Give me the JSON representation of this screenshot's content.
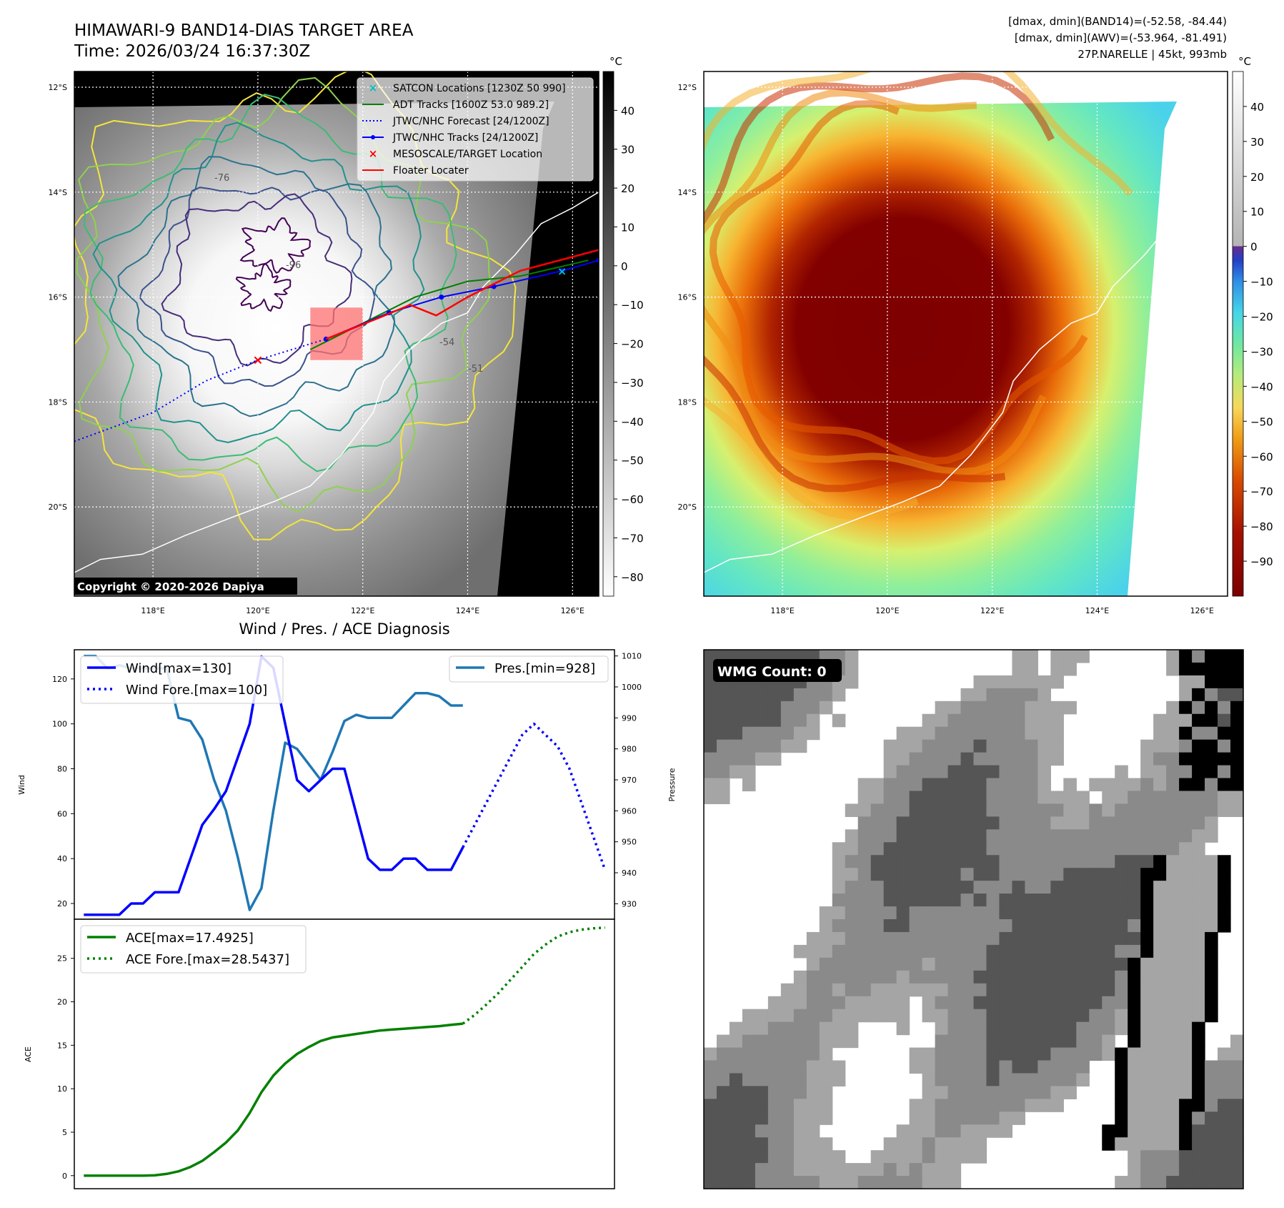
{
  "header": {
    "title": "HIMAWARI-9 BAND14-DIAS TARGET AREA",
    "time": "Time: 2026/03/24 16:37:30Z",
    "stats": [
      "[dmax, dmin](BAND14)=(-52.58, -84.44)",
      "[dmax, dmin](AWV)=(-53.964, -81.491)",
      "27P.NARELLE | 45kt, 993mb"
    ]
  },
  "maps": {
    "lat_labels": [
      "12°S",
      "14°S",
      "16°S",
      "18°S",
      "20°S"
    ],
    "lat_values": [
      -12,
      -14,
      -16,
      -18,
      -20
    ],
    "lon_labels": [
      "118°E",
      "120°E",
      "122°E",
      "124°E",
      "126°E"
    ],
    "lon_values": [
      118,
      120,
      122,
      124,
      126
    ],
    "lon_range": [
      116.5,
      126.5
    ],
    "lat_range": [
      -21.7,
      -11.7
    ],
    "copyright": "Copyright © 2020-2026 Dapiya",
    "unit": "°C",
    "left_colorbar_ticks": [
      "40",
      "30",
      "20",
      "10",
      "0",
      "−10",
      "−20",
      "−30",
      "−40",
      "−50",
      "−60",
      "−70",
      "−80"
    ],
    "left_colorbar_values": [
      40,
      30,
      20,
      10,
      0,
      -10,
      -20,
      -30,
      -40,
      -50,
      -60,
      -70,
      -80
    ],
    "left_colorbar_range": [
      -85,
      50
    ],
    "right_colorbar_ticks": [
      "40",
      "30",
      "20",
      "10",
      "0",
      "−10",
      "−20",
      "−30",
      "−40",
      "−50",
      "−60",
      "−70",
      "−80",
      "−90"
    ],
    "right_colorbar_values": [
      40,
      30,
      20,
      10,
      0,
      -10,
      -20,
      -30,
      -40,
      -50,
      -60,
      -70,
      -80,
      -90
    ],
    "right_colorbar_range": [
      -100,
      50
    ],
    "legend": [
      {
        "label": "SATCON Locations [1230Z 50 990]",
        "color": "#00c0c0",
        "style": "x"
      },
      {
        "label": "ADT Tracks [1600Z 53.0 989.2]",
        "color": "#008000",
        "style": "line"
      },
      {
        "label": "JTWC/NHC Forecast [24/1200Z]",
        "color": "#0000ff",
        "style": "dotted"
      },
      {
        "label": "JTWC/NHC Tracks [24/1200Z]",
        "color": "#0000ff",
        "style": "line-dot"
      },
      {
        "label": "MESOSCALE/TARGET Location",
        "color": "#ff0000",
        "style": "x"
      },
      {
        "label": "Floater Locater",
        "color": "#ff0000",
        "style": "line"
      }
    ],
    "contour_labels": [
      "-76",
      "-96",
      "-54",
      "-51"
    ],
    "tracks": {
      "jtwc_forecast": [
        [
          116.5,
          -18.75
        ],
        [
          118.0,
          -18.2
        ],
        [
          119.0,
          -17.6
        ],
        [
          120.0,
          -17.2
        ],
        [
          121.3,
          -16.8
        ]
      ],
      "jtwc_track": [
        [
          121.3,
          -16.8
        ],
        [
          122.5,
          -16.3
        ],
        [
          123.5,
          -16.0
        ],
        [
          124.5,
          -15.8
        ],
        [
          125.8,
          -15.5
        ],
        [
          126.5,
          -15.3
        ]
      ],
      "adt_track": [
        [
          121.0,
          -17.0
        ],
        [
          122.0,
          -16.5
        ],
        [
          123.0,
          -16.0
        ],
        [
          124.0,
          -15.7
        ],
        [
          125.0,
          -15.6
        ],
        [
          126.3,
          -15.3
        ]
      ],
      "floater": [
        [
          121.3,
          -16.8
        ],
        [
          121.8,
          -16.6
        ],
        [
          122.3,
          -16.4
        ],
        [
          122.9,
          -16.15
        ],
        [
          123.4,
          -16.35
        ],
        [
          124.0,
          -16.0
        ],
        [
          125.0,
          -15.5
        ],
        [
          126.5,
          -15.1
        ]
      ],
      "target": [
        120.0,
        -17.2
      ],
      "satcon": [
        125.8,
        -15.5
      ]
    },
    "target_box": {
      "lon": [
        121.0,
        122.0
      ],
      "lat": [
        -17.2,
        -16.2
      ]
    }
  },
  "diag": {
    "title": "Wind / Pres. / ACE Diagnosis",
    "wind_ylabel": "Wind",
    "pres_ylabel": "Pressure",
    "ace_ylabel": "ACE",
    "legend_wind": "Wind[max=130]",
    "legend_wind_fore": "Wind Fore.[max=100]",
    "legend_pres": "Pres.[min=928]",
    "legend_ace": "ACE[max=17.4925]",
    "legend_ace_fore": "ACE Fore.[max=28.5437]",
    "wind_ticks": [
      "20",
      "40",
      "60",
      "80",
      "100",
      "120"
    ],
    "pres_ticks": [
      "930",
      "940",
      "950",
      "960",
      "970",
      "980",
      "990",
      "1000",
      "1010"
    ],
    "ace_ticks": [
      "0",
      "5",
      "10",
      "15",
      "20",
      "25"
    ]
  },
  "chart_data": [
    {
      "type": "line",
      "title": "Wind / Pres. / ACE Diagnosis",
      "ylabel": "Wind",
      "ylim": [
        13,
        133
      ],
      "xlim": [
        -0.8,
        44.8
      ],
      "series": [
        {
          "name": "Wind[max=130]",
          "x": [
            0,
            1,
            2,
            3,
            4,
            5,
            6,
            7,
            8,
            9,
            10,
            11,
            12,
            13,
            14,
            15,
            16,
            17,
            18,
            19,
            20,
            21,
            22,
            23,
            24,
            25,
            26,
            27,
            28,
            29,
            30,
            31,
            32
          ],
          "values": [
            15,
            15,
            15,
            15,
            20,
            20,
            25,
            25,
            25,
            40,
            55,
            62,
            70,
            85,
            100,
            130,
            125,
            100,
            75,
            70,
            75,
            80,
            80,
            60,
            40,
            35,
            35,
            40,
            40,
            35,
            35,
            35,
            45
          ]
        },
        {
          "name": "Wind Fore.[max=100]",
          "x": [
            32,
            33,
            34,
            35,
            36,
            37,
            38,
            39,
            40,
            41,
            42,
            43,
            44
          ],
          "values": [
            45,
            55,
            65,
            75,
            85,
            95,
            100,
            95,
            90,
            80,
            65,
            50,
            35
          ]
        }
      ]
    },
    {
      "type": "line",
      "ylabel": "Pressure",
      "ylim": [
        925,
        1012
      ],
      "series": [
        {
          "name": "Pres.[min=928]",
          "x": [
            0,
            1,
            2,
            3,
            4,
            5,
            6,
            7,
            8,
            9,
            10,
            11,
            12,
            13,
            14,
            15,
            16,
            17,
            18,
            19,
            20,
            21,
            22,
            23,
            24,
            25,
            26,
            27,
            28,
            29,
            30,
            31,
            32
          ],
          "values": [
            1010,
            1010,
            1006,
            1007,
            1006,
            1006,
            1006,
            1006,
            990,
            989,
            983,
            970,
            960,
            945,
            928,
            935,
            960,
            982,
            980,
            975,
            970,
            979,
            989,
            991,
            990,
            990,
            990,
            994,
            998,
            998,
            997,
            994,
            994
          ]
        }
      ]
    },
    {
      "type": "line",
      "ylabel": "ACE",
      "ylim": [
        -1.5,
        29.5
      ],
      "series": [
        {
          "name": "ACE[max=17.4925]",
          "x": [
            0,
            1,
            2,
            3,
            4,
            5,
            6,
            7,
            8,
            9,
            10,
            11,
            12,
            13,
            14,
            15,
            16,
            17,
            18,
            19,
            20,
            21,
            22,
            23,
            24,
            25,
            26,
            27,
            28,
            29,
            30,
            31,
            32
          ],
          "values": [
            0,
            0,
            0,
            0,
            0,
            0,
            0.05,
            0.2,
            0.5,
            1.0,
            1.7,
            2.7,
            3.8,
            5.2,
            7.2,
            9.6,
            11.5,
            12.9,
            14.0,
            14.8,
            15.5,
            15.9,
            16.1,
            16.3,
            16.5,
            16.7,
            16.8,
            16.9,
            17.0,
            17.1,
            17.2,
            17.35,
            17.49
          ]
        },
        {
          "name": "ACE Fore.[max=28.5437]",
          "x": [
            32,
            33,
            34,
            35,
            36,
            37,
            38,
            39,
            40,
            41,
            42,
            43,
            44
          ],
          "values": [
            17.49,
            18.5,
            19.7,
            21.0,
            22.5,
            24.0,
            25.5,
            26.6,
            27.5,
            28.0,
            28.3,
            28.45,
            28.54
          ]
        }
      ]
    }
  ],
  "wmg": {
    "label": "WMG Count: 0",
    "grid_cols": 42,
    "grid_rows": 42,
    "seed": 27
  }
}
